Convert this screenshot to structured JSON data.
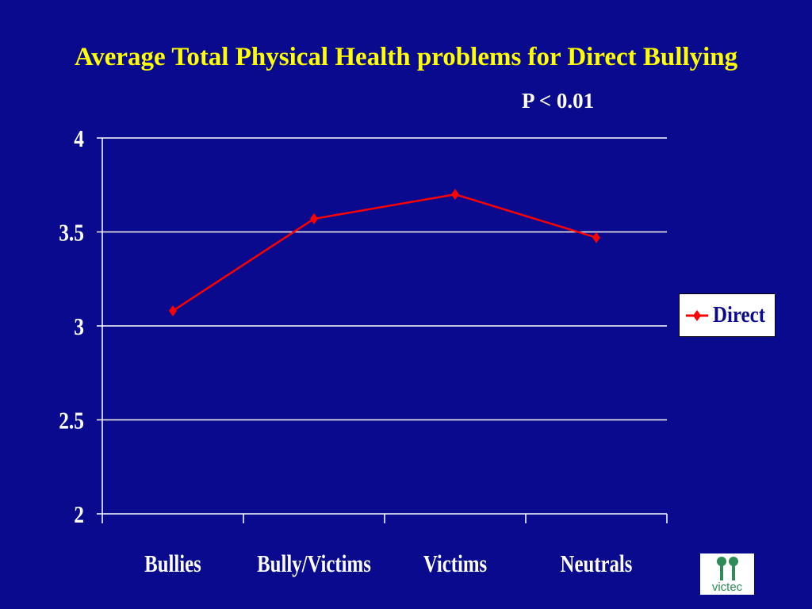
{
  "slide": {
    "title": "Average Total Physical Health problems for Direct Bullying",
    "pvalue": "P < 0.01",
    "logo_text": "victec"
  },
  "colors": {
    "background": "#0a0a8f",
    "title": "#ffff00",
    "series": "#ff0000",
    "axis": "#ffffff",
    "logo": "#2e8b57"
  },
  "chart_data": {
    "type": "line",
    "categories": [
      "Bullies",
      "Bully/Victims",
      "Victims",
      "Neutrals"
    ],
    "series": [
      {
        "name": "Direct",
        "values": [
          3.08,
          3.57,
          3.7,
          3.47
        ]
      }
    ],
    "ylim": [
      2,
      4
    ],
    "yticks": [
      "2",
      "2.5",
      "3",
      "3.5",
      "4"
    ],
    "grid": true,
    "legend_position": "right",
    "marker": "diamond"
  }
}
